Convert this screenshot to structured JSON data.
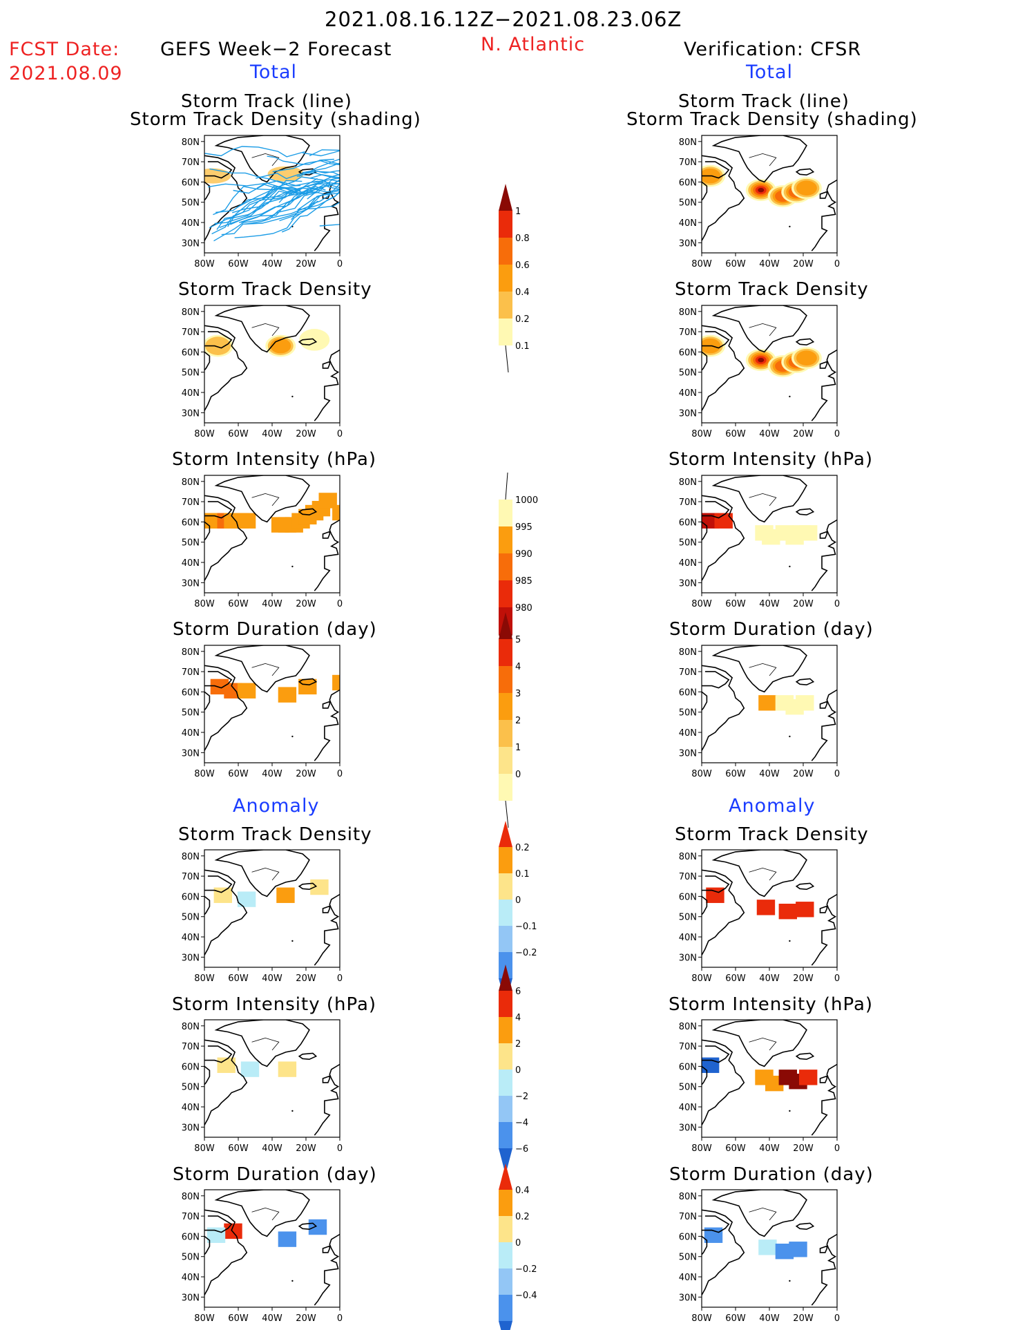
{
  "header": {
    "date_range": "2021.08.16.12Z−2021.08.23.06Z",
    "fcst_label": "FCST Date:",
    "fcst_date": "2021.08.09",
    "left_title": "GEFS Week−2 Forecast",
    "region": "N. Atlantic",
    "right_title": "Verification: CFSR",
    "left_total": "Total",
    "right_total": "Total",
    "left_anomaly": "Anomaly",
    "right_anomaly": "Anomaly"
  },
  "panel_titles": {
    "track_line": "Storm Track (line)",
    "track_shading": "Storm Track Density (shading)",
    "density": "Storm Track Density",
    "intensity": "Storm Intensity (hPa)",
    "duration": "Storm Duration (day)"
  },
  "axes": {
    "lat_ticks": [
      "80N",
      "70N",
      "60N",
      "50N",
      "40N",
      "30N"
    ],
    "lon_ticks": [
      "80W",
      "60W",
      "40W",
      "20W",
      "0"
    ]
  },
  "colors": {
    "lightyellow": "#fff9b3",
    "yellow": "#fde48a",
    "lightorange": "#fbc04b",
    "orange": "#fb9d0f",
    "darkorange": "#f76d0a",
    "red": "#ea2b0a",
    "darkred": "#c01008",
    "maroon": "#8a0a05",
    "lightcyan": "#b9ecf7",
    "lightblue": "#93c6f5",
    "blue": "#4b92ec",
    "darkblue": "#1f63cf",
    "track_line": "#1b9ce6"
  },
  "chart_data": [
    {
      "type": "heatmap",
      "column": "forecast",
      "row": "track_and_density",
      "title": "Storm Track (line) / Storm Track Density (shading)",
      "xlabel": "",
      "ylabel": "",
      "xlim": [
        -80,
        0
      ],
      "ylim": [
        25,
        85
      ],
      "track_count": 45,
      "shading": [
        {
          "lon": -75,
          "lat": 63,
          "color": "lightorange"
        },
        {
          "lon": -32,
          "lat": 64,
          "color": "lightorange"
        }
      ]
    },
    {
      "type": "heatmap",
      "column": "verification",
      "row": "track_and_density",
      "title": "Storm Track (line) / Storm Track Density (shading)",
      "xlim": [
        -80,
        0
      ],
      "ylim": [
        25,
        85
      ],
      "blobs": [
        {
          "lon": -75,
          "lat": 63,
          "value": 0.4
        },
        {
          "lon": -45,
          "lat": 56,
          "value": 1.0
        },
        {
          "lon": -32,
          "lat": 53,
          "value": 0.6
        },
        {
          "lon": -24,
          "lat": 55,
          "value": 0.6
        },
        {
          "lon": -18,
          "lat": 57,
          "value": 0.4
        }
      ]
    },
    {
      "type": "heatmap",
      "column": "forecast",
      "row": "density",
      "title": "Storm Track Density",
      "xlim": [
        -80,
        0
      ],
      "ylim": [
        25,
        85
      ],
      "blobs": [
        {
          "lon": -72,
          "lat": 63,
          "value": 0.2
        },
        {
          "lon": -35,
          "lat": 63,
          "value": 0.4
        },
        {
          "lon": -15,
          "lat": 66,
          "value": 0.1
        }
      ]
    },
    {
      "type": "heatmap",
      "column": "verification",
      "row": "density",
      "title": "Storm Track Density",
      "xlim": [
        -80,
        0
      ],
      "ylim": [
        25,
        85
      ],
      "blobs": [
        {
          "lon": -75,
          "lat": 63,
          "value": 0.4
        },
        {
          "lon": -45,
          "lat": 56,
          "value": 1.0
        },
        {
          "lon": -32,
          "lat": 53,
          "value": 0.6
        },
        {
          "lon": -24,
          "lat": 55,
          "value": 0.6
        },
        {
          "lon": -18,
          "lat": 57,
          "value": 0.4
        }
      ]
    },
    {
      "type": "heatmap",
      "column": "forecast",
      "row": "intensity",
      "title": "Storm Intensity (hPa)",
      "xlim": [
        -80,
        0
      ],
      "ylim": [
        25,
        85
      ],
      "cells": [
        {
          "lon": -78,
          "lat": 62,
          "value": 995
        },
        {
          "lon": -74,
          "lat": 62,
          "value": 995
        },
        {
          "lon": -70,
          "lat": 62,
          "value": 990
        },
        {
          "lon": -66,
          "lat": 62,
          "value": 995
        },
        {
          "lon": -62,
          "lat": 62,
          "value": 995
        },
        {
          "lon": -58,
          "lat": 62,
          "value": 995
        },
        {
          "lon": -38,
          "lat": 60,
          "value": 995
        },
        {
          "lon": -34,
          "lat": 60,
          "value": 995
        },
        {
          "lon": -30,
          "lat": 60,
          "value": 995
        },
        {
          "lon": -26,
          "lat": 62,
          "value": 995
        },
        {
          "lon": -22,
          "lat": 64,
          "value": 995
        },
        {
          "lon": -18,
          "lat": 66,
          "value": 995
        },
        {
          "lon": -14,
          "lat": 68,
          "value": 995
        },
        {
          "lon": -10,
          "lat": 72,
          "value": 995
        },
        {
          "lon": -2,
          "lat": 66,
          "value": 995
        }
      ]
    },
    {
      "type": "heatmap",
      "column": "verification",
      "row": "intensity",
      "title": "Storm Intensity (hPa)",
      "xlim": [
        -80,
        0
      ],
      "ylim": [
        25,
        85
      ],
      "cells": [
        {
          "lon": -78,
          "lat": 62,
          "value": 980
        },
        {
          "lon": -70,
          "lat": 62,
          "value": 985
        },
        {
          "lon": -46,
          "lat": 56,
          "value": 1000
        },
        {
          "lon": -42,
          "lat": 54,
          "value": 1000
        },
        {
          "lon": -34,
          "lat": 56,
          "value": 1000
        },
        {
          "lon": -28,
          "lat": 54,
          "value": 1000
        },
        {
          "lon": -24,
          "lat": 56,
          "value": 1000
        },
        {
          "lon": -20,
          "lat": 56,
          "value": 1000
        }
      ]
    },
    {
      "type": "heatmap",
      "column": "forecast",
      "row": "duration",
      "title": "Storm Duration (day)",
      "xlim": [
        -80,
        0
      ],
      "ylim": [
        25,
        85
      ],
      "cells": [
        {
          "lon": -74,
          "lat": 64,
          "value": 3
        },
        {
          "lon": -66,
          "lat": 62,
          "value": 3
        },
        {
          "lon": -58,
          "lat": 62,
          "value": 2
        },
        {
          "lon": -34,
          "lat": 60,
          "value": 2
        },
        {
          "lon": -22,
          "lat": 64,
          "value": 2
        },
        {
          "lon": -2,
          "lat": 66,
          "value": 2
        }
      ]
    },
    {
      "type": "heatmap",
      "column": "verification",
      "row": "duration",
      "title": "Storm Duration (day)",
      "xlim": [
        -80,
        0
      ],
      "ylim": [
        25,
        85
      ],
      "cells": [
        {
          "lon": -44,
          "lat": 56,
          "value": 2
        },
        {
          "lon": -34,
          "lat": 56,
          "value": 0.5
        },
        {
          "lon": -28,
          "lat": 54,
          "value": 0.5
        },
        {
          "lon": -22,
          "lat": 56,
          "value": 0.5
        }
      ]
    },
    {
      "type": "heatmap",
      "column": "forecast",
      "row": "density_anomaly",
      "title": "Storm Track Density (Anomaly)",
      "xlim": [
        -80,
        0
      ],
      "ylim": [
        25,
        85
      ],
      "cells": [
        {
          "lon": -72,
          "lat": 62,
          "value": 0.05
        },
        {
          "lon": -58,
          "lat": 60,
          "value": -0.05
        },
        {
          "lon": -35,
          "lat": 62,
          "value": 0.1
        },
        {
          "lon": -15,
          "lat": 66,
          "value": 0.05
        }
      ]
    },
    {
      "type": "heatmap",
      "column": "verification",
      "row": "density_anomaly",
      "title": "Storm Track Density (Anomaly)",
      "xlim": [
        -80,
        0
      ],
      "ylim": [
        25,
        85
      ],
      "cells": [
        {
          "lon": -75,
          "lat": 62,
          "value": 0.2
        },
        {
          "lon": -45,
          "lat": 56,
          "value": 0.25
        },
        {
          "lon": -32,
          "lat": 54,
          "value": 0.25
        },
        {
          "lon": -22,
          "lat": 55,
          "value": 0.25
        }
      ]
    },
    {
      "type": "heatmap",
      "column": "forecast",
      "row": "intensity_anomaly",
      "title": "Storm Intensity (hPa) (Anomaly)",
      "xlim": [
        -80,
        0
      ],
      "ylim": [
        25,
        85
      ],
      "cells": [
        {
          "lon": -70,
          "lat": 62,
          "value": 1
        },
        {
          "lon": -34,
          "lat": 60,
          "value": 1
        },
        {
          "lon": -56,
          "lat": 60,
          "value": -1
        }
      ]
    },
    {
      "type": "heatmap",
      "column": "verification",
      "row": "intensity_anomaly",
      "title": "Storm Intensity (hPa) (Anomaly)",
      "xlim": [
        -80,
        0
      ],
      "ylim": [
        25,
        85
      ],
      "cells": [
        {
          "lon": -78,
          "lat": 62,
          "value": -4
        },
        {
          "lon": -46,
          "lat": 56,
          "value": 3
        },
        {
          "lon": -40,
          "lat": 53,
          "value": 3
        },
        {
          "lon": -32,
          "lat": 56,
          "value": 7
        },
        {
          "lon": -26,
          "lat": 54,
          "value": 7
        },
        {
          "lon": -20,
          "lat": 56,
          "value": 5
        }
      ]
    },
    {
      "type": "heatmap",
      "column": "forecast",
      "row": "duration_anomaly",
      "title": "Storm Duration (day) (Anomaly)",
      "xlim": [
        -80,
        0
      ],
      "ylim": [
        25,
        85
      ],
      "cells": [
        {
          "lon": -66,
          "lat": 64,
          "value": 0.4
        },
        {
          "lon": -76,
          "lat": 62,
          "value": -0.1
        },
        {
          "lon": -34,
          "lat": 60,
          "value": -0.4
        },
        {
          "lon": -16,
          "lat": 66,
          "value": -0.4
        }
      ]
    },
    {
      "type": "heatmap",
      "column": "verification",
      "row": "duration_anomaly",
      "title": "Storm Duration (day) (Anomaly)",
      "xlim": [
        -80,
        0
      ],
      "ylim": [
        25,
        85
      ],
      "cells": [
        {
          "lon": -76,
          "lat": 62,
          "value": -0.4
        },
        {
          "lon": -44,
          "lat": 56,
          "value": -0.1
        },
        {
          "lon": -34,
          "lat": 54,
          "value": -0.4
        },
        {
          "lon": -26,
          "lat": 55,
          "value": -0.4
        }
      ]
    }
  ],
  "colorbars": [
    {
      "name": "density",
      "labels": [
        "1",
        "0.8",
        "0.6",
        "0.4",
        "0.2",
        "0.1"
      ],
      "colors": [
        "maroon",
        "red",
        "darkorange",
        "orange",
        "lightorange",
        "lightyellow"
      ],
      "ends": "top"
    },
    {
      "name": "intensity",
      "labels": [
        "1000",
        "995",
        "990",
        "985",
        "980"
      ],
      "colors": [
        "lightyellow",
        "orange",
        "darkorange",
        "red",
        "darkred",
        "maroon"
      ],
      "ends": "bottom"
    },
    {
      "name": "duration",
      "labels": [
        "5",
        "4",
        "3",
        "2",
        "1",
        "0"
      ],
      "colors": [
        "maroon",
        "red",
        "darkorange",
        "orange",
        "lightorange",
        "yellow",
        "lightyellow"
      ],
      "ends": "top"
    },
    {
      "name": "density_anomaly",
      "labels": [
        "0.2",
        "0.1",
        "0",
        "−0.1",
        "−0.2"
      ],
      "colors": [
        "red",
        "orange",
        "yellow",
        "lightcyan",
        "lightblue",
        "blue",
        "darkblue"
      ],
      "ends": "both"
    },
    {
      "name": "intensity_anomaly",
      "labels": [
        "6",
        "4",
        "2",
        "0",
        "−2",
        "−4",
        "−6"
      ],
      "colors": [
        "maroon",
        "red",
        "orange",
        "yellow",
        "lightcyan",
        "lightblue",
        "blue",
        "darkblue"
      ],
      "ends": "both"
    },
    {
      "name": "duration_anomaly",
      "labels": [
        "0.4",
        "0.2",
        "0",
        "−0.2",
        "−0.4"
      ],
      "colors": [
        "red",
        "orange",
        "yellow",
        "lightcyan",
        "lightblue",
        "blue",
        "darkblue"
      ],
      "ends": "both"
    }
  ]
}
